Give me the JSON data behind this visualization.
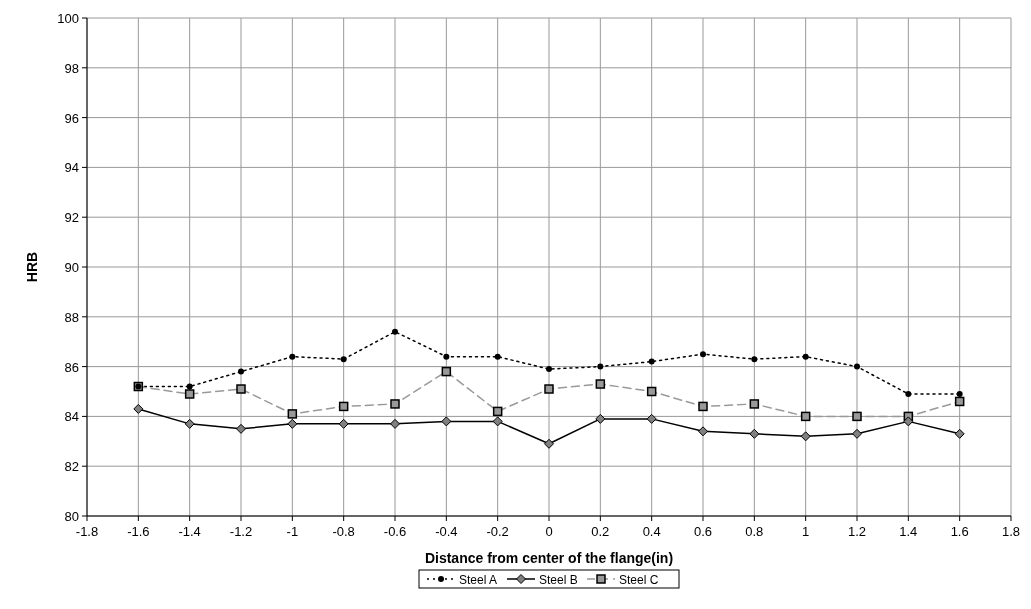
{
  "chart_data": {
    "type": "line",
    "xlabel": "Distance from center of the flange(in)",
    "ylabel": "HRB",
    "x": [
      -1.6,
      -1.4,
      -1.2,
      -1,
      -0.8,
      -0.6,
      -0.4,
      -0.2,
      0,
      0.2,
      0.4,
      0.6,
      0.8,
      1,
      1.2,
      1.4,
      1.6
    ],
    "series": [
      {
        "name": "Steel A",
        "color": "#000000",
        "marker": "circle",
        "line_style": "dotted",
        "values": [
          85.2,
          85.2,
          85.8,
          86.4,
          86.3,
          87.4,
          86.4,
          86.4,
          85.9,
          86.0,
          86.2,
          86.5,
          86.3,
          86.4,
          86.0,
          84.9,
          84.9
        ]
      },
      {
        "name": "Steel B",
        "color": "#000000",
        "marker": "diamond",
        "line_style": "solid",
        "values": [
          84.3,
          83.7,
          83.5,
          83.7,
          83.7,
          83.7,
          83.8,
          83.8,
          82.9,
          83.9,
          83.9,
          83.4,
          83.3,
          83.2,
          83.3,
          83.8,
          83.3
        ]
      },
      {
        "name": "Steel C",
        "color": "#999999",
        "marker": "square",
        "line_style": "dashed",
        "values": [
          85.2,
          84.9,
          85.1,
          84.1,
          84.4,
          84.5,
          85.8,
          84.2,
          85.1,
          85.3,
          85.0,
          84.4,
          84.5,
          84.0,
          84.0,
          84.0,
          84.6
        ]
      }
    ],
    "xlim": [
      -1.8,
      1.8
    ],
    "xticks": [
      -1.8,
      -1.6,
      -1.4,
      -1.2,
      -1,
      -0.8,
      -0.6,
      -0.4,
      -0.2,
      0,
      0.2,
      0.4,
      0.6,
      0.8,
      1,
      1.2,
      1.4,
      1.6,
      1.8
    ],
    "ylim": [
      80,
      100
    ],
    "yticks": [
      80,
      82,
      84,
      86,
      88,
      90,
      92,
      94,
      96,
      98,
      100
    ],
    "grid": true,
    "legend": "bottom"
  }
}
